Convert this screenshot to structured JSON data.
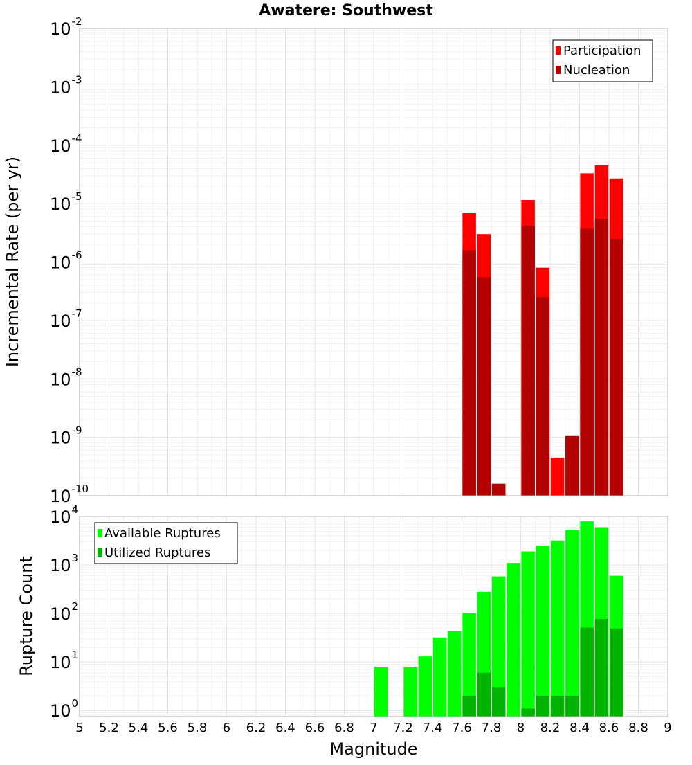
{
  "colors": {
    "participation": "#ff0000",
    "nucleation": "#b30000",
    "available": "#00ff00",
    "utilized": "#00b300"
  },
  "chart_data": [
    {
      "type": "bar",
      "title": "Awatere: Southwest",
      "ylabel": "Incremental Rate (per yr)",
      "xlabel": "",
      "yscale": "log",
      "ylim": [
        1e-10,
        0.01
      ],
      "xlim": [
        5,
        9
      ],
      "grid": true,
      "legend_position": "top-right",
      "y_ticks": [
        {
          "base": "10",
          "exp": "-10",
          "value": 1e-10
        },
        {
          "base": "10",
          "exp": "-9",
          "value": 1e-09
        },
        {
          "base": "10",
          "exp": "-8",
          "value": 1e-08
        },
        {
          "base": "10",
          "exp": "-7",
          "value": 1e-07
        },
        {
          "base": "10",
          "exp": "-6",
          "value": 1e-06
        },
        {
          "base": "10",
          "exp": "-5",
          "value": 1e-05
        },
        {
          "base": "10",
          "exp": "-4",
          "value": 0.0001
        },
        {
          "base": "10",
          "exp": "-3",
          "value": 0.001
        },
        {
          "base": "10",
          "exp": "-2",
          "value": 0.01
        }
      ],
      "series": [
        {
          "name": "Participation",
          "color": "#ff0000",
          "x": [
            7.65,
            7.75,
            7.85,
            8.05,
            8.15,
            8.25,
            8.35,
            8.45,
            8.55,
            8.65
          ],
          "values": [
            7e-06,
            3e-06,
            1.6e-10,
            1.15e-05,
            8e-07,
            4.5e-10,
            1.05e-09,
            3.3e-05,
            4.5e-05,
            2.7e-05
          ]
        },
        {
          "name": "Nucleation",
          "color": "#b30000",
          "x": [
            7.65,
            7.75,
            7.85,
            8.05,
            8.15,
            8.25,
            8.35,
            8.45,
            8.55,
            8.65
          ],
          "values": [
            1.6e-06,
            5.5e-07,
            1.6e-10,
            4.2e-06,
            2.5e-07,
            null,
            1.05e-09,
            3.7e-06,
            5.5e-06,
            2.5e-06
          ]
        }
      ]
    },
    {
      "type": "bar",
      "title": "",
      "ylabel": "Rupture Count",
      "xlabel": "Magnitude",
      "yscale": "log",
      "ylim": [
        0.75,
        10000
      ],
      "xlim": [
        5,
        9
      ],
      "grid": true,
      "legend_position": "top-left",
      "x_ticks": [
        "5",
        "5.2",
        "5.4",
        "5.6",
        "5.8",
        "6",
        "6.2",
        "6.4",
        "6.6",
        "6.8",
        "7",
        "7.2",
        "7.4",
        "7.6",
        "7.8",
        "8",
        "8.2",
        "8.4",
        "8.6",
        "8.8",
        "9"
      ],
      "y_ticks": [
        {
          "base": "10",
          "exp": "0",
          "value": 1
        },
        {
          "base": "10",
          "exp": "1",
          "value": 10
        },
        {
          "base": "10",
          "exp": "2",
          "value": 100
        },
        {
          "base": "10",
          "exp": "3",
          "value": 1000
        },
        {
          "base": "10",
          "exp": "4",
          "value": 10000
        }
      ],
      "series": [
        {
          "name": "Available Ruptures",
          "color": "#00ff00",
          "x": [
            7.05,
            7.25,
            7.35,
            7.45,
            7.55,
            7.65,
            7.75,
            7.85,
            7.95,
            8.05,
            8.15,
            8.25,
            8.35,
            8.45,
            8.55,
            8.65
          ],
          "values": [
            8,
            8,
            13,
            32,
            43,
            103,
            280,
            580,
            1100,
            1900,
            2500,
            3200,
            5200,
            7900,
            6000,
            600
          ]
        },
        {
          "name": "Utilized Ruptures",
          "color": "#00b300",
          "x": [
            7.65,
            7.75,
            7.85,
            8.05,
            8.15,
            8.25,
            8.35,
            8.45,
            8.55,
            8.65
          ],
          "values": [
            2,
            6,
            3,
            1.1,
            2,
            2,
            2,
            51,
            77,
            49
          ]
        }
      ]
    }
  ]
}
